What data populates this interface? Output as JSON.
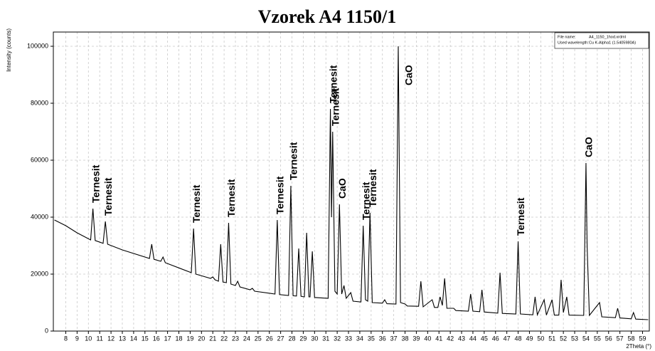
{
  "chart_data": {
    "type": "line",
    "title": "Vzorek A4 1150/1",
    "y_label": "Intensity (counts)",
    "x_label": "2Theta (°)",
    "info": [
      {
        "label": "File name:",
        "value": "A4_1150_1hod.xrdml"
      },
      {
        "label": "Used wavelength:",
        "value": "Cu K-Alpha1 (1.5405980A)"
      }
    ],
    "color": "#000000",
    "grid": true,
    "xlim": [
      6.9,
      59.6
    ],
    "ylim": [
      0,
      105000
    ],
    "yticks": [
      0,
      20000,
      40000,
      60000,
      80000,
      100000
    ],
    "xticks": [
      8,
      9,
      10,
      11,
      12,
      13,
      14,
      15,
      16,
      17,
      18,
      19,
      20,
      21,
      22,
      23,
      24,
      25,
      26,
      27,
      28,
      29,
      30,
      31,
      32,
      33,
      34,
      35,
      36,
      37,
      38,
      39,
      40,
      41,
      42,
      43,
      44,
      45,
      46,
      47,
      48,
      49,
      50,
      51,
      52,
      53,
      54,
      55,
      56,
      57,
      58,
      59
    ],
    "x": [
      7.0,
      8.0,
      9.0,
      10.2,
      10.4,
      10.6,
      11.3,
      11.5,
      11.7,
      13.0,
      15.4,
      15.6,
      15.8,
      16.4,
      16.6,
      16.8,
      19.1,
      19.3,
      19.5,
      20.8,
      21.0,
      21.2,
      21.5,
      21.7,
      21.9,
      22.2,
      22.4,
      22.6,
      23.0,
      23.2,
      23.4,
      24.3,
      24.5,
      24.7,
      26.5,
      26.7,
      26.9,
      27.7,
      27.9,
      28.1,
      28.4,
      28.6,
      28.8,
      29.1,
      29.3,
      29.5,
      29.6,
      29.8,
      30.0,
      31.2,
      31.4,
      31.5,
      31.6,
      31.8,
      32.0,
      32.2,
      32.4,
      32.6,
      32.8,
      33.2,
      33.4,
      34.1,
      34.3,
      34.5,
      34.7,
      34.9,
      35.1,
      36.0,
      36.2,
      36.4,
      37.2,
      37.4,
      37.6,
      38.0,
      38.2,
      39.2,
      39.4,
      39.6,
      40.4,
      40.6,
      40.9,
      41.1,
      41.3,
      41.5,
      41.7,
      42.3,
      42.5,
      43.6,
      43.8,
      44.0,
      44.6,
      44.8,
      45.0,
      46.2,
      46.4,
      46.6,
      47.8,
      48.0,
      48.2,
      49.3,
      49.5,
      49.7,
      50.3,
      50.5,
      51.0,
      51.2,
      51.6,
      51.8,
      52.0,
      52.3,
      52.5,
      53.8,
      54.0,
      54.1,
      54.3,
      55.2,
      55.4,
      56.6,
      56.8,
      57.0,
      58.0,
      58.2,
      58.4,
      59.5
    ],
    "values": [
      39000,
      37000,
      34500,
      32000,
      43000,
      31800,
      30800,
      38500,
      30500,
      28500,
      25500,
      30500,
      25200,
      24500,
      26000,
      24000,
      20500,
      36000,
      20000,
      18500,
      19000,
      18000,
      17500,
      30500,
      17200,
      17000,
      38000,
      16500,
      16000,
      17500,
      15500,
      14500,
      15000,
      14000,
      13000,
      39000,
      12800,
      12500,
      51000,
      12400,
      12300,
      29000,
      12200,
      12000,
      34500,
      12000,
      12000,
      28000,
      11800,
      11500,
      78000,
      40000,
      70000,
      14000,
      13000,
      44500,
      13000,
      16000,
      11500,
      13500,
      10500,
      10200,
      37000,
      11000,
      10500,
      41500,
      10000,
      9800,
      11000,
      9600,
      9500,
      100000,
      10000,
      9500,
      8800,
      8700,
      17500,
      8500,
      11000,
      8300,
      8300,
      12000,
      9000,
      18500,
      8000,
      8000,
      7200,
      7000,
      13000,
      7000,
      6800,
      14500,
      6700,
      6300,
      20500,
      6200,
      6000,
      31500,
      6000,
      5700,
      12000,
      5700,
      11000,
      5600,
      11000,
      5600,
      5600,
      18000,
      6500,
      12000,
      5600,
      5500,
      59000,
      30000,
      5500,
      10000,
      5000,
      4700,
      8000,
      4600,
      4300,
      6500,
      4200,
      4000
    ],
    "annotations": [
      {
        "text": "Ternesit",
        "x": 10.4,
        "y": 43000
      },
      {
        "text": "Ternesit",
        "x": 11.5,
        "y": 38500
      },
      {
        "text": "Ternesit",
        "x": 19.3,
        "y": 36000
      },
      {
        "text": "Ternesit",
        "x": 22.4,
        "y": 38000
      },
      {
        "text": "Ternesit",
        "x": 26.7,
        "y": 39000
      },
      {
        "text": "Ternesit",
        "x": 27.9,
        "y": 51000
      },
      {
        "text": "Ternesit",
        "x": 31.4,
        "y": 78000
      },
      {
        "text": "Ternesit",
        "x": 31.6,
        "y": 70000
      },
      {
        "text": "CaO",
        "x": 32.2,
        "y": 44500
      },
      {
        "text": "Ternesit",
        "x": 34.3,
        "y": 37000
      },
      {
        "text": "Ternesit",
        "x": 34.9,
        "y": 41500
      },
      {
        "text": "CaO",
        "x": 37.4,
        "y": 100000
      },
      {
        "text": "Ternesit",
        "x": 48.0,
        "y": 31500
      },
      {
        "text": "CaO",
        "x": 54.0,
        "y": 59000
      }
    ]
  }
}
